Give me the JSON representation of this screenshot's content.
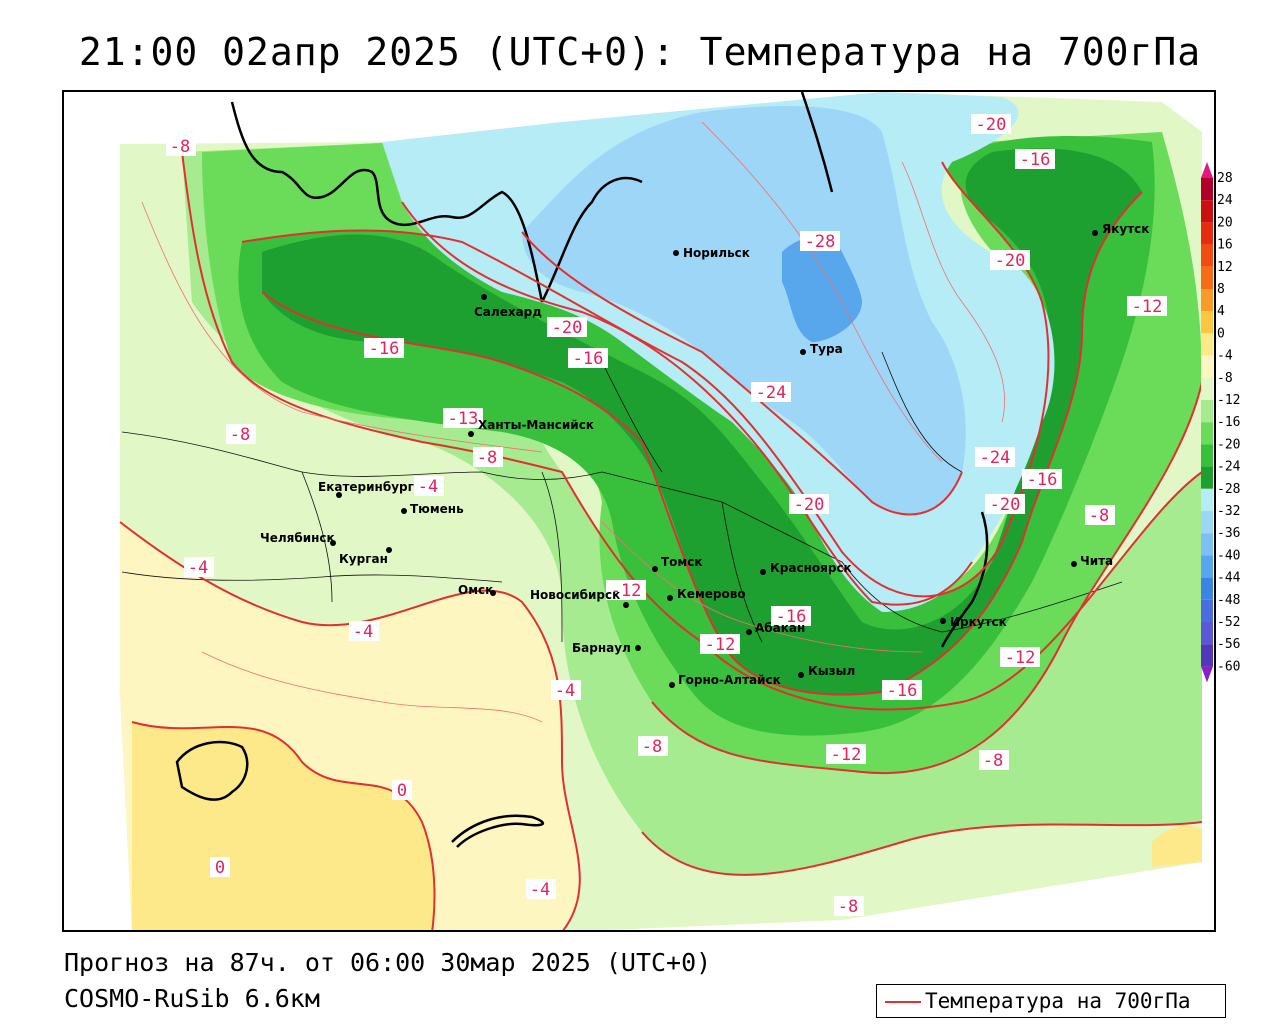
{
  "title": "21:00 02апр 2025 (UTC+0): Температура на 700гПа",
  "footer": {
    "forecast": "Прогноз на 87ч. от 06:00 30мар 2025 (UTC+0)",
    "model": "COSMO-RuSib 6.6км"
  },
  "legend": {
    "label": "Температура на 700гПа",
    "line_color": "#e03030"
  },
  "colorbar": {
    "levels": [
      "28",
      "24",
      "20",
      "16",
      "12",
      "8",
      "4",
      "0",
      "-4",
      "-8",
      "-12",
      "-16",
      "-20",
      "-24",
      "-28",
      "-32",
      "-36",
      "-40",
      "-44",
      "-48",
      "-52",
      "-56",
      "-60"
    ],
    "colors": [
      "#b0002a",
      "#cc1010",
      "#e82a10",
      "#f24a10",
      "#f86c18",
      "#fb9a2a",
      "#fdc640",
      "#fde98a",
      "#fdf6c0",
      "#e2f7c6",
      "#a6eb90",
      "#6adc5a",
      "#38c03c",
      "#1ea030",
      "#b6ecf6",
      "#9ed6f8",
      "#7ec0f4",
      "#58a6ec",
      "#3c84e4",
      "#4a6ee0",
      "#5a58d6",
      "#5038b8",
      "#3a2098"
    ],
    "top_arrow_color": "#e01880",
    "bottom_arrow_color": "#8a20c8"
  },
  "isotherm_labels": [
    "-8",
    "-8",
    "-16",
    "-13",
    "-8",
    "-4",
    "-4",
    "-4",
    "-4",
    "-8",
    "0",
    "0",
    "-4",
    "-20",
    "-16",
    "-28",
    "-24",
    "-20",
    "-12",
    "-12",
    "-16",
    "-12",
    "-16",
    "-12",
    "-8",
    "-8",
    "-20",
    "-16",
    "-20",
    "-12",
    "-24",
    "-20",
    "-16",
    "-8"
  ],
  "cities": [
    "Норильск",
    "Салехард",
    "Тура",
    "Ханты-Мансийск",
    "Екатеринбург",
    "Тюмень",
    "Челябинск",
    "Курган",
    "Омск",
    "Новосибирск",
    "Томск",
    "Красноярск",
    "Кемерово",
    "Абакан",
    "Барнаул",
    "Горно-Алтайск",
    "Кызыл",
    "Иркутск",
    "Чита",
    "Якутск"
  ]
}
